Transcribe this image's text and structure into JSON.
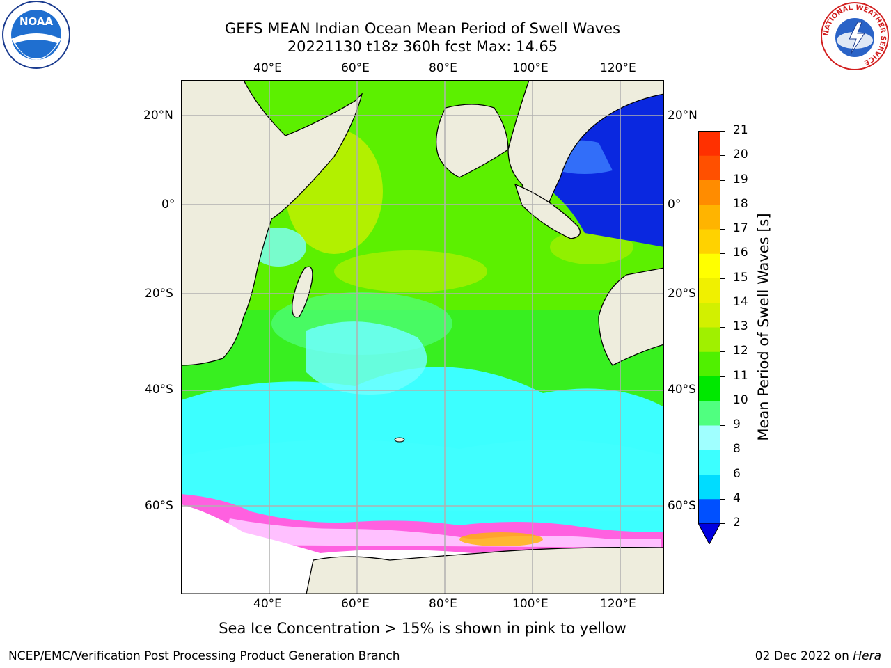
{
  "header": {
    "title_line1": "GEFS MEAN Indian Ocean Mean Period of Swell Waves",
    "title_line2": "20221130 t18z 360h fcst   Max: 14.65"
  },
  "logos": {
    "left": {
      "name": "NOAA",
      "text": "NOAA"
    },
    "right": {
      "name": "National Weather Service",
      "text": "NATIONAL WEATHER SERVICE"
    }
  },
  "map": {
    "lon_ticks": [
      "40°E",
      "60°E",
      "80°E",
      "100°E",
      "120°E"
    ],
    "lat_ticks": [
      "20°N",
      "0°",
      "20°S",
      "40°S",
      "60°S"
    ],
    "lon_range": [
      20,
      130
    ],
    "lat_range": [
      -72,
      28
    ]
  },
  "colorbar": {
    "title": "Mean Period of Swell Waves [s]",
    "levels": [
      "2",
      "4",
      "6",
      "8",
      "9",
      "10",
      "11",
      "12",
      "13",
      "14",
      "15",
      "16",
      "17",
      "18",
      "19",
      "20",
      "21"
    ],
    "colors": [
      "#0050ff",
      "#00dcff",
      "#3cffff",
      "#a0ffff",
      "#50ff80",
      "#00e800",
      "#50f000",
      "#a0f000",
      "#d2f000",
      "#f0f000",
      "#ffff00",
      "#ffd200",
      "#ffb400",
      "#ff8c00",
      "#ff5000",
      "#ff3000",
      "#ff0000"
    ],
    "under_color": "#0000e0"
  },
  "footer": {
    "note": "Sea Ice Concentration > 15% is shown in pink to yellow",
    "credit": "NCEP/EMC/Verification Post Processing Product Generation Branch",
    "date_prefix": "02 Dec 2022 on",
    "date_host": "Hera"
  }
}
